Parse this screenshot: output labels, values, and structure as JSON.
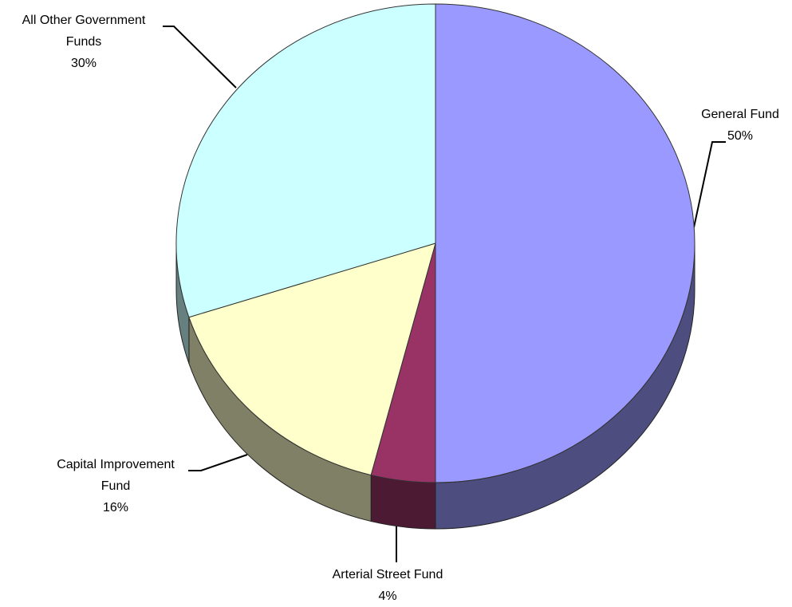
{
  "chart_data": {
    "type": "pie",
    "categories": [
      "General Fund",
      "Arterial Street Fund",
      "Capital Improvement Fund",
      "All Other Government Funds"
    ],
    "values": [
      50,
      4,
      16,
      30
    ],
    "value_labels": [
      "50%",
      "4%",
      "16%",
      "30%"
    ],
    "colors": [
      "#9999ff",
      "#993366",
      "#ffffcc",
      "#ccffff"
    ]
  }
}
